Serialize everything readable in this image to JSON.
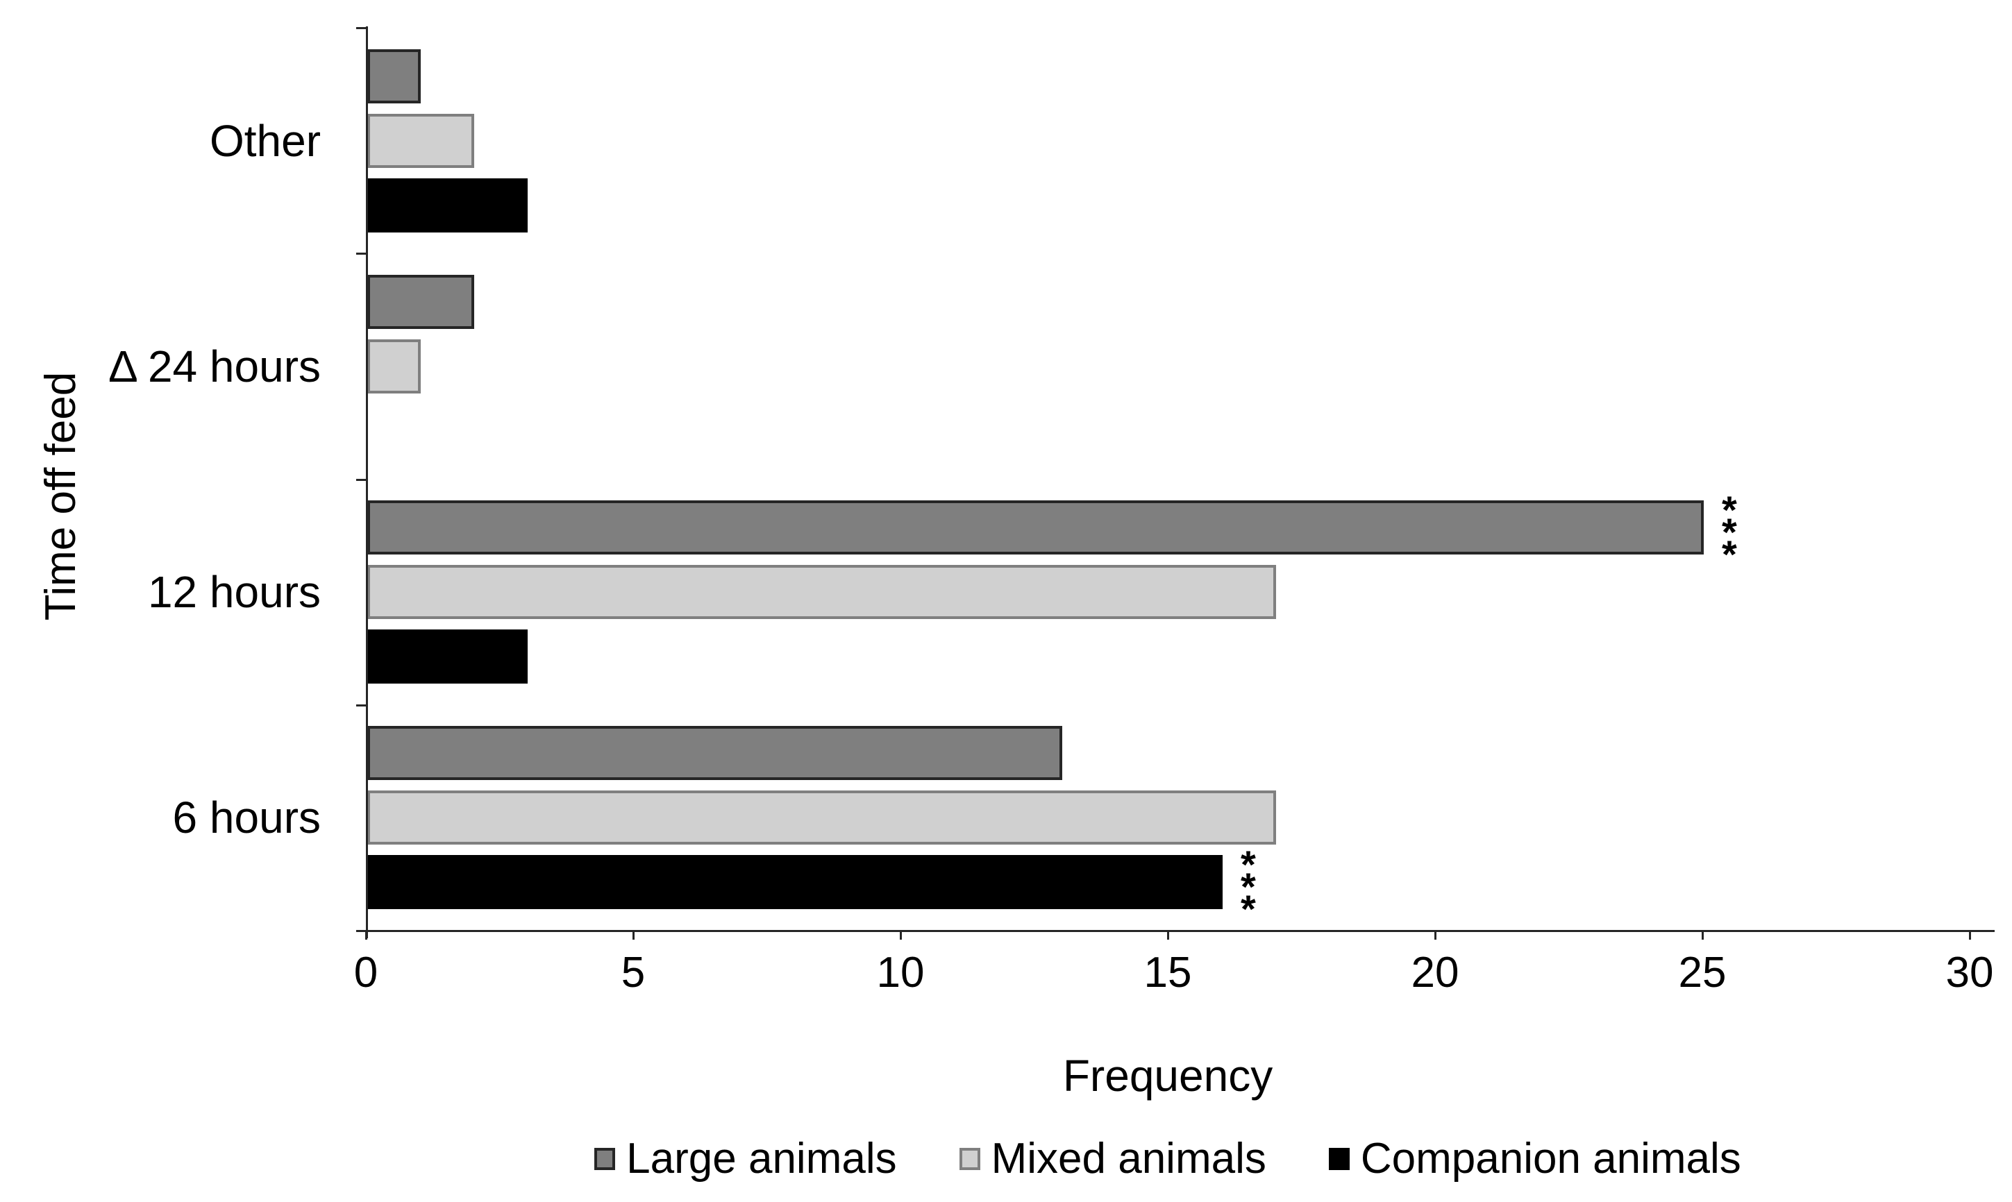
{
  "chart_data": {
    "type": "bar",
    "orientation": "horizontal",
    "title": "",
    "xlabel": "Frequency",
    "ylabel": "Time off feed",
    "xlim": [
      0,
      30
    ],
    "xticks": [
      "0",
      "5",
      "10",
      "15",
      "20",
      "25",
      "30"
    ],
    "categories": [
      "Other",
      "Δ 24 hours",
      "12 hours",
      "6 hours"
    ],
    "series": [
      {
        "name": "Large animals",
        "fill": "#7f7f7f",
        "border": "#262626",
        "values": [
          1,
          2,
          25,
          13
        ],
        "annotations": [
          "",
          "",
          "***",
          ""
        ]
      },
      {
        "name": "Mixed animals",
        "fill": "#d0d0d0",
        "border": "#7f7f7f",
        "values": [
          2,
          1,
          17,
          17
        ],
        "annotations": [
          "",
          "",
          "",
          ""
        ]
      },
      {
        "name": "Companion animals",
        "fill": "#000000",
        "border": "#000000",
        "values": [
          3,
          0,
          3,
          16
        ],
        "annotations": [
          "",
          "",
          "",
          "***"
        ]
      }
    ],
    "legend_position": "bottom",
    "grid": false,
    "background": "#ffffff",
    "text_color": "#000000",
    "axis_color": "#262626"
  }
}
